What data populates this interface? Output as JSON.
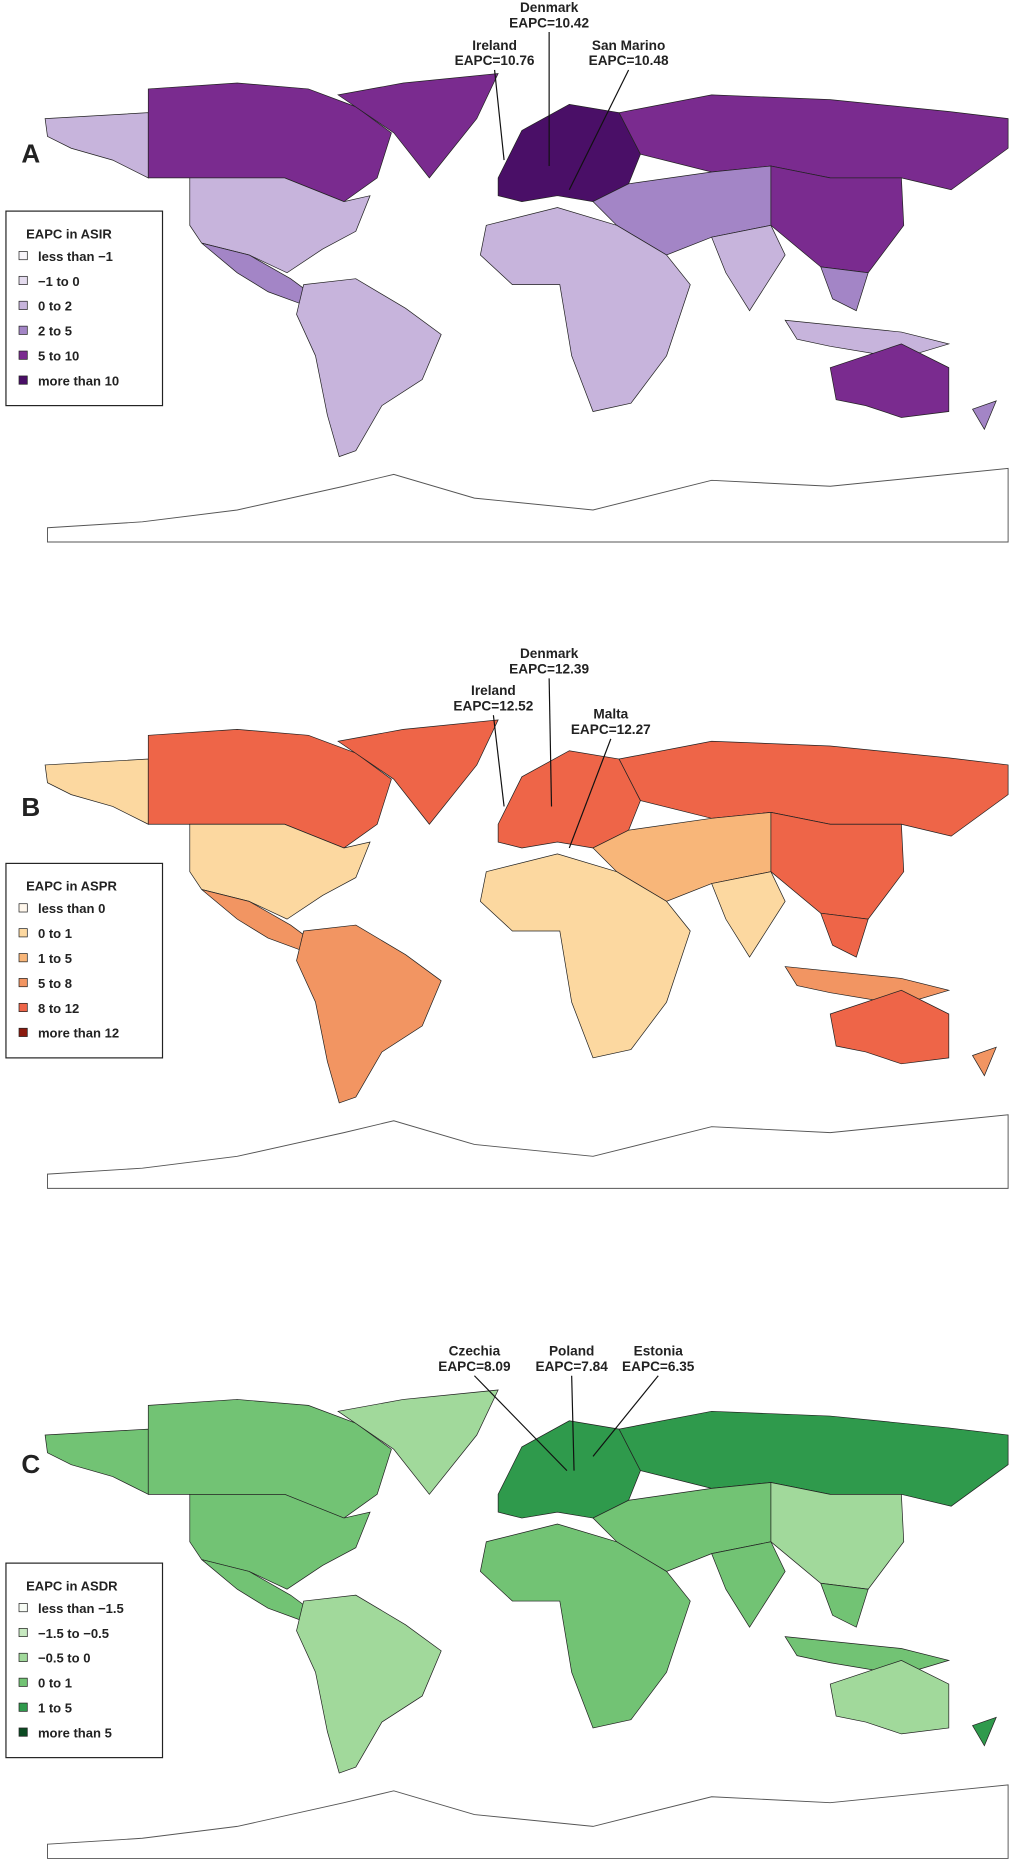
{
  "panels": [
    {
      "label": "A",
      "legend": {
        "title": "EAPC in ASIR",
        "items": [
          {
            "label": "less than −1",
            "color": "#f7f4f9"
          },
          {
            "label": "−1 to 0",
            "color": "#e4dbee"
          },
          {
            "label": "0 to 2",
            "color": "#c7b4dc"
          },
          {
            "label": "2 to 5",
            "color": "#a385c6"
          },
          {
            "label": "5 to 10",
            "color": "#7a2b8f"
          },
          {
            "label": "more than 10",
            "color": "#4a0f67"
          }
        ]
      },
      "annotations": [
        {
          "country": "Denmark",
          "value": "EAPC=10.42"
        },
        {
          "country": "Ireland",
          "value": "EAPC=10.76"
        },
        {
          "country": "San Marino",
          "value": "EAPC=10.48"
        }
      ]
    },
    {
      "label": "B",
      "legend": {
        "title": "EAPC in ASPR",
        "items": [
          {
            "label": "less than 0",
            "color": "#fff7ec"
          },
          {
            "label": "0 to 1",
            "color": "#fcd8a0"
          },
          {
            "label": "1 to 5",
            "color": "#f8b679"
          },
          {
            "label": "5 to 8",
            "color": "#f29562"
          },
          {
            "label": "8 to 12",
            "color": "#ee6548"
          },
          {
            "label": "more than 12",
            "color": "#8b1a0e"
          }
        ]
      },
      "annotations": [
        {
          "country": "Denmark",
          "value": "EAPC=12.39"
        },
        {
          "country": "Ireland",
          "value": "EAPC=12.52"
        },
        {
          "country": "Malta",
          "value": "EAPC=12.27"
        }
      ]
    },
    {
      "label": "C",
      "legend": {
        "title": "EAPC in ASDR",
        "items": [
          {
            "label": "less than −1.5",
            "color": "#f7fcf5"
          },
          {
            "label": "−1.5 to −0.5",
            "color": "#c7e9c0"
          },
          {
            "label": "−0.5 to 0",
            "color": "#a1d99b"
          },
          {
            "label": "0 to 1",
            "color": "#72c374"
          },
          {
            "label": "1 to 5",
            "color": "#2f9a4c"
          },
          {
            "label": "more than 5",
            "color": "#0b4a22"
          }
        ]
      },
      "annotations": [
        {
          "country": "Czechia",
          "value": "EAPC=8.09"
        },
        {
          "country": "Poland",
          "value": "EAPC=7.84"
        },
        {
          "country": "Estonia",
          "value": "EAPC=6.35"
        }
      ]
    }
  ]
}
